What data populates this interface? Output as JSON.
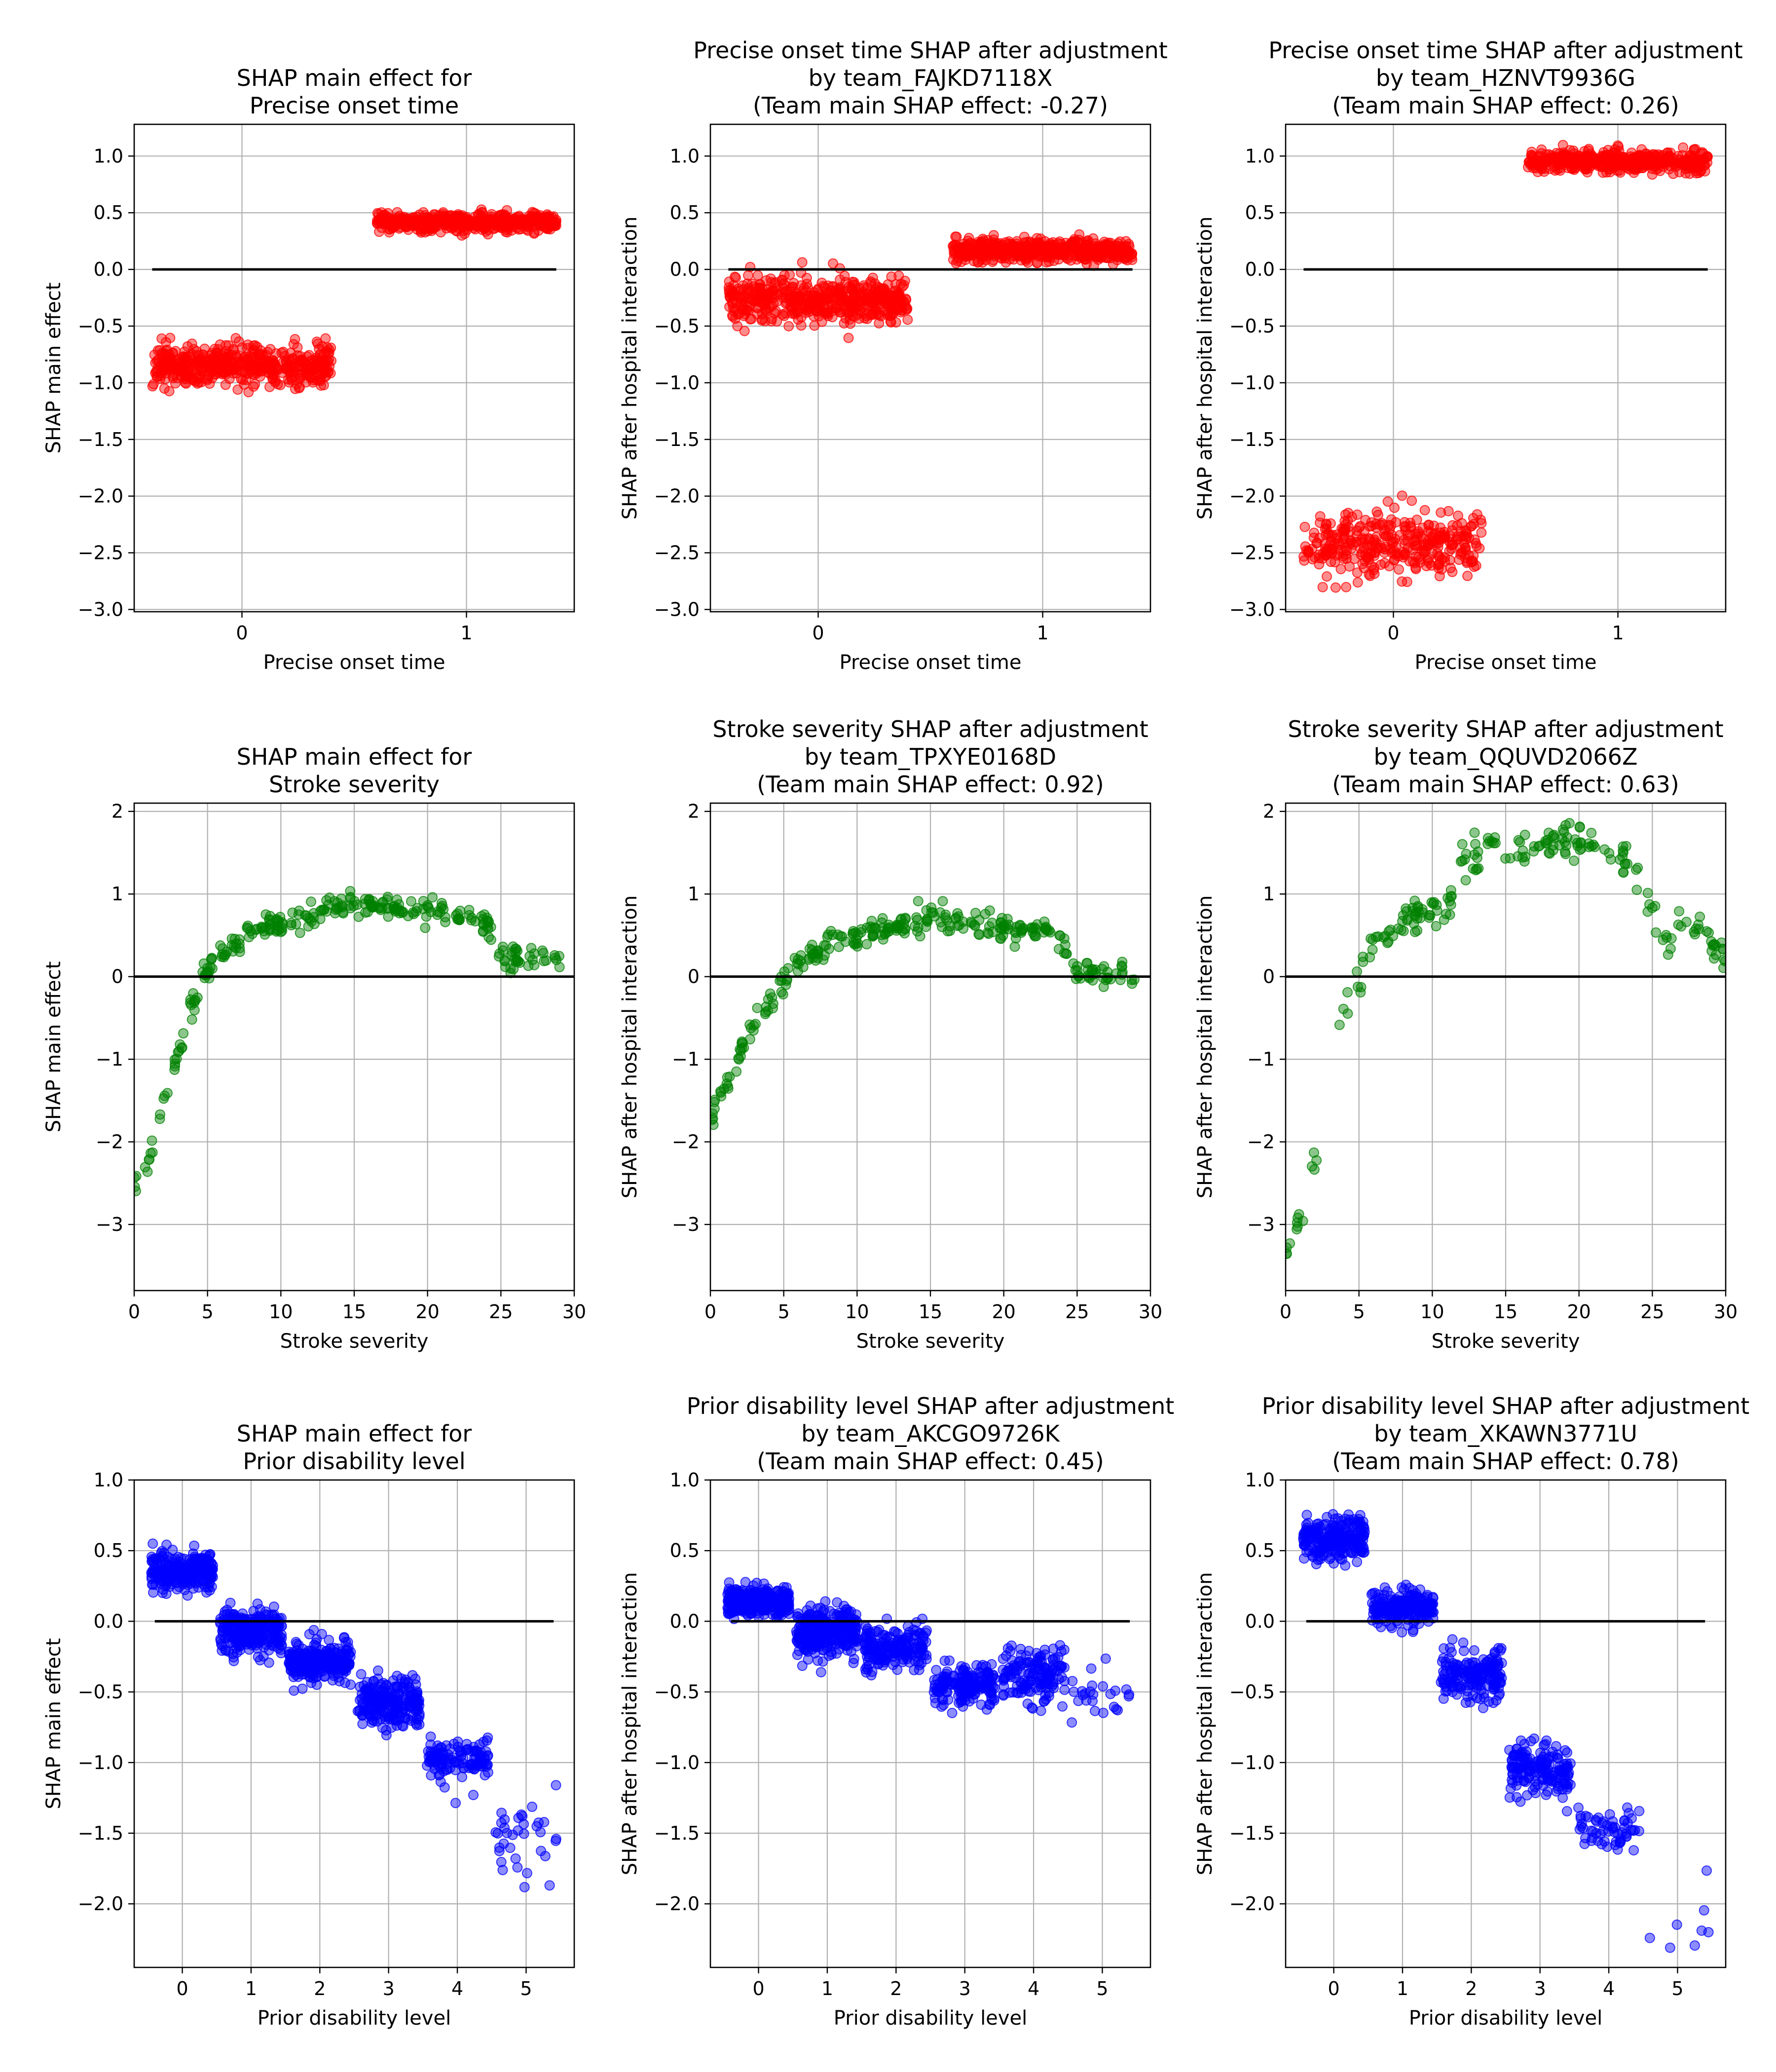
{
  "colors": {
    "onset": "#ff0000",
    "severity": "#008000",
    "disability": "#0000ff",
    "grid": "#b0b0b0",
    "zero_line": "#000000"
  },
  "chart_data": [
    {
      "type": "scatter",
      "title": "SHAP main effect for\nPrecise onset time",
      "xlabel": "Precise onset time",
      "ylabel": "SHAP main effect",
      "xlim": [
        -0.48,
        1.48
      ],
      "ylim": [
        -3.02,
        1.28
      ],
      "xticks": [
        0,
        1
      ],
      "yticks": [
        1.0,
        0.5,
        0.0,
        -0.5,
        -1.0,
        -1.5,
        -2.0,
        -2.5,
        -3.0
      ],
      "tick_format": "fixed1",
      "grid": true,
      "zero_line": [
        -0.4,
        1.4
      ],
      "color_key": "onset",
      "jitter": 0.4,
      "groups": [
        {
          "x": 0,
          "y": -0.85,
          "spread": 0.09,
          "n": 500
        },
        {
          "x": 1,
          "y": 0.42,
          "spread": 0.04,
          "n": 500
        }
      ]
    },
    {
      "type": "scatter",
      "title": "Precise onset time SHAP after adjustment\nby team_FAJKD7118X\n(Team main SHAP effect: -0.27)",
      "xlabel": "Precise onset time",
      "ylabel": "SHAP after hospital interaction",
      "xlim": [
        -0.48,
        1.48
      ],
      "ylim": [
        -3.02,
        1.28
      ],
      "xticks": [
        0,
        1
      ],
      "yticks": [
        1.0,
        0.5,
        0.0,
        -0.5,
        -1.0,
        -1.5,
        -2.0,
        -2.5,
        -3.0
      ],
      "tick_format": "fixed1",
      "grid": true,
      "zero_line": [
        -0.4,
        1.4
      ],
      "color_key": "onset",
      "jitter": 0.4,
      "groups": [
        {
          "x": 0,
          "y": -0.27,
          "spread": 0.1,
          "n": 500
        },
        {
          "x": 1,
          "y": 0.17,
          "spread": 0.05,
          "n": 500
        }
      ]
    },
    {
      "type": "scatter",
      "title": "Precise onset time SHAP after adjustment\nby team_HZNVT9936G\n(Team main SHAP effect: 0.26)",
      "xlabel": "Precise onset time",
      "ylabel": "SHAP after hospital interaction",
      "xlim": [
        -0.48,
        1.48
      ],
      "ylim": [
        -3.02,
        1.28
      ],
      "xticks": [
        0,
        1
      ],
      "yticks": [
        1.0,
        0.5,
        0.0,
        -0.5,
        -1.0,
        -1.5,
        -2.0,
        -2.5,
        -3.0
      ],
      "tick_format": "fixed1",
      "grid": true,
      "zero_line": [
        -0.4,
        1.4
      ],
      "color_key": "onset",
      "jitter": 0.4,
      "groups": [
        {
          "x": 0,
          "y": -2.43,
          "spread": 0.15,
          "n": 350
        },
        {
          "x": 1,
          "y": 0.95,
          "spread": 0.05,
          "n": 450
        }
      ]
    },
    {
      "type": "scatter",
      "title": "SHAP main effect for\nStroke severity",
      "xlabel": "Stroke severity",
      "ylabel": "SHAP main effect",
      "xlim": [
        0,
        30
      ],
      "ylim": [
        -3.8,
        2.1
      ],
      "xticks": [
        0,
        5,
        10,
        15,
        20,
        25,
        30
      ],
      "yticks": [
        2,
        1,
        0,
        -1,
        -2,
        -3
      ],
      "tick_format": "int",
      "grid": true,
      "zero_line": [
        0,
        30
      ],
      "color_key": "severity",
      "jitter": 0.35,
      "curve": [
        [
          0,
          -2.55
        ],
        [
          1,
          -2.2
        ],
        [
          2,
          -1.5
        ],
        [
          3,
          -0.98
        ],
        [
          4,
          -0.28
        ],
        [
          5,
          0.12
        ],
        [
          6,
          0.3
        ],
        [
          7,
          0.42
        ],
        [
          8,
          0.55
        ],
        [
          9,
          0.62
        ],
        [
          10,
          0.65
        ],
        [
          12,
          0.75
        ],
        [
          14,
          0.86
        ],
        [
          16,
          0.87
        ],
        [
          18,
          0.85
        ],
        [
          20,
          0.81
        ],
        [
          22,
          0.76
        ],
        [
          24,
          0.68
        ],
        [
          25,
          0.25
        ],
        [
          26,
          0.25
        ],
        [
          27,
          0.24
        ],
        [
          28,
          0.23
        ],
        [
          29,
          0.2
        ]
      ],
      "curve_spread": 0.07,
      "points_per_unit": 10
    },
    {
      "type": "scatter",
      "title": "Stroke severity SHAP after adjustment\nby team_TPXYE0168D\n(Team main SHAP effect: 0.92)",
      "xlabel": "Stroke severity",
      "ylabel": "SHAP after hospital interaction",
      "xlim": [
        0,
        30
      ],
      "ylim": [
        -3.8,
        2.1
      ],
      "xticks": [
        0,
        5,
        10,
        15,
        20,
        25,
        30
      ],
      "yticks": [
        2,
        1,
        0,
        -1,
        -2,
        -3
      ],
      "tick_format": "int",
      "grid": true,
      "zero_line": [
        0,
        30
      ],
      "color_key": "severity",
      "jitter": 0.35,
      "curve": [
        [
          0,
          -1.75
        ],
        [
          1,
          -1.3
        ],
        [
          2,
          -0.9
        ],
        [
          3,
          -0.6
        ],
        [
          4,
          -0.35
        ],
        [
          5,
          -0.05
        ],
        [
          6,
          0.15
        ],
        [
          7,
          0.28
        ],
        [
          8,
          0.38
        ],
        [
          10,
          0.5
        ],
        [
          12,
          0.58
        ],
        [
          14,
          0.66
        ],
        [
          15,
          0.7
        ],
        [
          17,
          0.66
        ],
        [
          19,
          0.6
        ],
        [
          21,
          0.56
        ],
        [
          23,
          0.5
        ],
        [
          24,
          0.42
        ],
        [
          25,
          0.1
        ],
        [
          26,
          0.05
        ],
        [
          27,
          0.05
        ],
        [
          28,
          0.03
        ],
        [
          29,
          0.0
        ]
      ],
      "curve_spread": 0.08,
      "points_per_unit": 10
    },
    {
      "type": "scatter",
      "title": "Stroke severity SHAP after adjustment\nby team_QQUVD2066Z\n(Team main SHAP effect: 0.63)",
      "xlabel": "Stroke severity",
      "ylabel": "SHAP after hospital interaction",
      "xlim": [
        0,
        30
      ],
      "ylim": [
        -3.8,
        2.1
      ],
      "xticks": [
        0,
        5,
        10,
        15,
        20,
        25,
        30
      ],
      "yticks": [
        2,
        1,
        0,
        -1,
        -2,
        -3
      ],
      "tick_format": "int",
      "grid": true,
      "zero_line": [
        0,
        30
      ],
      "color_key": "severity",
      "jitter": 0.35,
      "curve": [
        [
          0,
          -3.4
        ],
        [
          1,
          -2.95
        ],
        [
          2,
          -2.2
        ],
        [
          3,
          -1.6
        ],
        [
          4,
          -0.35
        ],
        [
          5,
          0.0
        ],
        [
          6,
          0.4
        ],
        [
          7,
          0.55
        ],
        [
          8,
          0.68
        ],
        [
          9,
          0.75
        ],
        [
          10,
          0.78
        ],
        [
          11,
          0.75
        ],
        [
          12,
          1.35
        ],
        [
          13,
          1.5
        ],
        [
          15,
          1.55
        ],
        [
          17,
          1.6
        ],
        [
          19,
          1.65
        ],
        [
          21,
          1.6
        ],
        [
          22,
          1.55
        ],
        [
          23,
          1.45
        ],
        [
          24,
          1.2
        ],
        [
          25,
          0.8
        ],
        [
          26,
          0.35
        ],
        [
          27,
          0.7
        ],
        [
          28,
          0.6
        ],
        [
          29,
          0.45
        ],
        [
          30,
          0.2
        ]
      ],
      "curve_spread": 0.1,
      "points_per_unit": 7
    },
    {
      "type": "scatter",
      "title": "SHAP main effect for\nPrior disability level",
      "xlabel": "Prior disability level",
      "ylabel": "SHAP main effect",
      "xlim": [
        -0.7,
        5.7
      ],
      "ylim": [
        -2.45,
        1.0
      ],
      "xticks": [
        0,
        1,
        2,
        3,
        4,
        5
      ],
      "yticks": [
        1.0,
        0.5,
        0.0,
        -0.5,
        -1.0,
        -1.5,
        -2.0
      ],
      "tick_format": "fixed1",
      "grid": true,
      "zero_line": [
        -0.4,
        5.4
      ],
      "color_key": "disability",
      "jitter": 0.45,
      "groups": [
        {
          "x": 0,
          "y": 0.35,
          "spread": 0.07,
          "n": 250
        },
        {
          "x": 1,
          "y": -0.08,
          "spread": 0.08,
          "n": 250
        },
        {
          "x": 2,
          "y": -0.28,
          "spread": 0.07,
          "n": 250
        },
        {
          "x": 3,
          "y": -0.57,
          "spread": 0.09,
          "n": 220
        },
        {
          "x": 4,
          "y": -0.97,
          "spread": 0.08,
          "n": 120
        },
        {
          "x": 5,
          "y": -1.5,
          "spread": 0.12,
          "n": 35
        }
      ]
    },
    {
      "type": "scatter",
      "title": "Prior disability level SHAP after adjustment\nby team_AKCGO9726K\n(Team main SHAP effect: 0.45)",
      "xlabel": "Prior disability level",
      "ylabel": "SHAP after hospital interaction",
      "xlim": [
        -0.7,
        5.7
      ],
      "ylim": [
        -2.45,
        1.0
      ],
      "xticks": [
        0,
        1,
        2,
        3,
        4,
        5
      ],
      "yticks": [
        1.0,
        0.5,
        0.0,
        -0.5,
        -1.0,
        -1.5,
        -2.0
      ],
      "tick_format": "fixed1",
      "grid": true,
      "zero_line": [
        -0.4,
        5.4
      ],
      "color_key": "disability",
      "jitter": 0.45,
      "groups": [
        {
          "x": 0,
          "y": 0.14,
          "spread": 0.05,
          "n": 300
        },
        {
          "x": 1,
          "y": -0.08,
          "spread": 0.08,
          "n": 280
        },
        {
          "x": 2,
          "y": -0.2,
          "spread": 0.08,
          "n": 180
        },
        {
          "x": 3,
          "y": -0.45,
          "spread": 0.07,
          "n": 170
        },
        {
          "x": 4,
          "y": -0.38,
          "spread": 0.1,
          "n": 150
        },
        {
          "x": 5,
          "y": -0.55,
          "spread": 0.1,
          "n": 25
        }
      ]
    },
    {
      "type": "scatter",
      "title": "Prior disability level SHAP after adjustment\nby team_XKAWN3771U\n(Team main SHAP effect: 0.78)",
      "xlabel": "Prior disability level",
      "ylabel": "SHAP after hospital interaction",
      "xlim": [
        -0.7,
        5.7
      ],
      "ylim": [
        -2.45,
        1.0
      ],
      "xticks": [
        0,
        1,
        2,
        3,
        4,
        5
      ],
      "yticks": [
        1.0,
        0.5,
        0.0,
        -0.5,
        -1.0,
        -1.5,
        -2.0
      ],
      "tick_format": "fixed1",
      "grid": true,
      "zero_line": [
        -0.4,
        5.4
      ],
      "color_key": "disability",
      "jitter": 0.45,
      "groups": [
        {
          "x": 0,
          "y": 0.58,
          "spread": 0.08,
          "n": 220
        },
        {
          "x": 1,
          "y": 0.1,
          "spread": 0.06,
          "n": 200
        },
        {
          "x": 2,
          "y": -0.38,
          "spread": 0.09,
          "n": 180
        },
        {
          "x": 3,
          "y": -1.05,
          "spread": 0.1,
          "n": 160
        },
        {
          "x": 4,
          "y": -1.48,
          "spread": 0.08,
          "n": 60
        },
        {
          "x": 5,
          "y": -2.15,
          "spread": 0.12,
          "n": 8
        }
      ]
    }
  ]
}
